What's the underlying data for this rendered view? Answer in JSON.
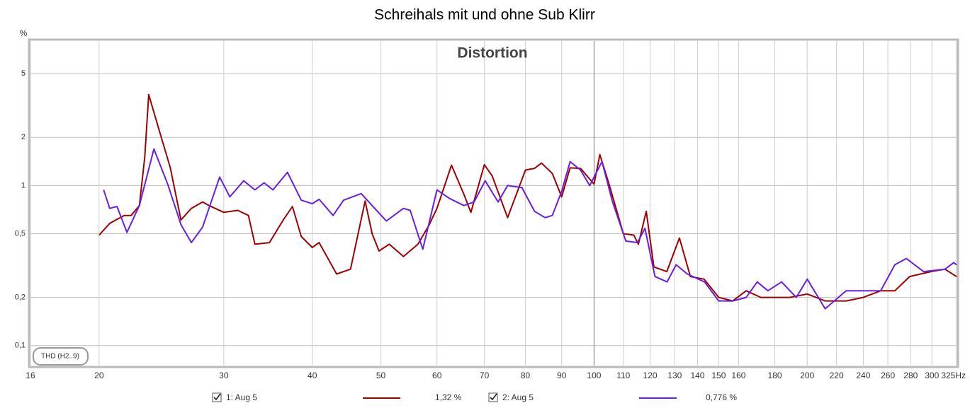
{
  "chart_data": {
    "type": "line",
    "title": "Schreihals mit und ohne Sub Klirr",
    "subtitle": "Distortion",
    "annotation": "THD (H2..9)",
    "y_unit": "%",
    "xscale": "log",
    "yscale": "log",
    "grid": true,
    "xlim": [
      16,
      325
    ],
    "ylim": [
      0.075,
      8
    ],
    "xticks": [
      16,
      20,
      30,
      40,
      50,
      60,
      70,
      80,
      90,
      100,
      110,
      120,
      130,
      140,
      150,
      160,
      180,
      200,
      220,
      240,
      260,
      280,
      300,
      {
        "value": 325,
        "label": "325Hz"
      }
    ],
    "yticks": [
      {
        "value": 0.1,
        "label": "0,1"
      },
      {
        "value": 0.2,
        "label": "0,2"
      },
      {
        "value": 0.5,
        "label": "0,5"
      },
      1,
      2,
      5
    ],
    "series": [
      {
        "name": "1: Aug 5",
        "legend_value": "1,32 %",
        "color": "#a00000",
        "x": [
          20,
          20.7,
          21.7,
          22.2,
          22.8,
          23.2,
          23.5,
          24.4,
          25.2,
          26.1,
          27,
          28,
          28.6,
          30,
          31.4,
          32.5,
          33.2,
          34.8,
          36.4,
          37.5,
          38.6,
          40,
          40.9,
          43.3,
          45.3,
          47.5,
          48.6,
          49.7,
          51.4,
          53.8,
          56.4,
          58.4,
          60,
          62.9,
          65.5,
          67,
          70,
          71.8,
          75.5,
          80,
          82.4,
          84.3,
          87.3,
          90,
          92.5,
          95.7,
          100,
          101.9,
          105,
          110,
          113.8,
          115.5,
          118.5,
          121.5,
          126.7,
          132,
          136.8,
          143,
          150,
          157,
          164,
          172,
          180,
          189,
          200,
          212,
          227,
          240,
          254,
          266,
          279,
          299,
          313,
          325
        ],
        "values": [
          0.49,
          0.58,
          0.65,
          0.65,
          0.75,
          1.5,
          3.7,
          2.1,
          1.3,
          0.61,
          0.72,
          0.79,
          0.75,
          0.68,
          0.7,
          0.65,
          0.43,
          0.44,
          0.61,
          0.74,
          0.48,
          0.41,
          0.44,
          0.28,
          0.3,
          0.8,
          0.5,
          0.39,
          0.43,
          0.36,
          0.43,
          0.56,
          0.72,
          1.34,
          0.88,
          0.68,
          1.35,
          1.15,
          0.63,
          1.25,
          1.28,
          1.38,
          1.19,
          0.85,
          1.29,
          1.28,
          1.02,
          1.56,
          1.02,
          0.5,
          0.49,
          0.43,
          0.69,
          0.31,
          0.29,
          0.47,
          0.27,
          0.26,
          0.2,
          0.19,
          0.22,
          0.2,
          0.2,
          0.2,
          0.21,
          0.19,
          0.19,
          0.2,
          0.22,
          0.22,
          0.27,
          0.29,
          0.3,
          0.27
        ]
      },
      {
        "name": "2: Aug 5",
        "legend_value": "0,776 %",
        "color": "#6a1ee0",
        "x": [
          20.3,
          20.7,
          21.2,
          21.9,
          22.8,
          23.9,
          25,
          26.1,
          27,
          28,
          29.6,
          30.6,
          32,
          33.2,
          34.2,
          35.2,
          36.9,
          38.6,
          40,
          40.9,
          42.8,
          44.3,
          46.9,
          48.6,
          50.9,
          53.8,
          55,
          57.3,
          60,
          62.5,
          65.5,
          67.7,
          70.2,
          73.2,
          75.5,
          79.1,
          82.4,
          85.3,
          87.3,
          90,
          92.5,
          95.7,
          98.6,
          102.6,
          106.2,
          110.9,
          115.1,
          118,
          121.9,
          126.8,
          130.6,
          135.4,
          143.2,
          150,
          157,
          164,
          170,
          176,
          184,
          193,
          200,
          212,
          227,
          241,
          254,
          266,
          276,
          292,
          313,
          322,
          325
        ],
        "values": [
          0.94,
          0.72,
          0.74,
          0.51,
          0.75,
          1.69,
          1.02,
          0.57,
          0.44,
          0.55,
          1.13,
          0.85,
          1.07,
          0.94,
          1.04,
          0.94,
          1.21,
          0.81,
          0.77,
          0.82,
          0.65,
          0.81,
          0.89,
          0.75,
          0.6,
          0.72,
          0.7,
          0.4,
          0.94,
          0.83,
          0.75,
          0.79,
          1.07,
          0.79,
          1.0,
          0.97,
          0.69,
          0.63,
          0.65,
          0.92,
          1.41,
          1.25,
          1.0,
          1.41,
          0.79,
          0.45,
          0.44,
          0.54,
          0.27,
          0.25,
          0.32,
          0.28,
          0.25,
          0.19,
          0.19,
          0.2,
          0.25,
          0.22,
          0.25,
          0.2,
          0.26,
          0.17,
          0.22,
          0.22,
          0.22,
          0.32,
          0.35,
          0.29,
          0.3,
          0.33,
          0.32
        ]
      }
    ]
  }
}
